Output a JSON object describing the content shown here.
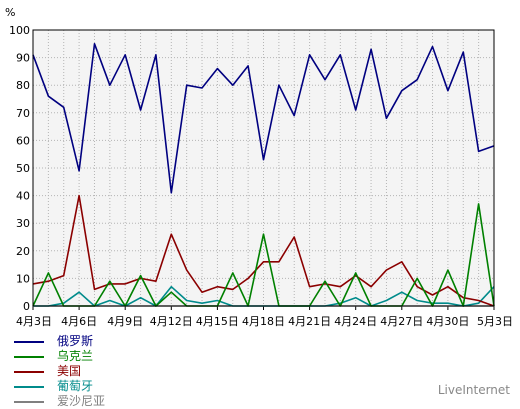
{
  "chart_data": {
    "type": "line",
    "ylabel": "%",
    "ylim": [
      0,
      100
    ],
    "y_ticks": [
      0,
      10,
      20,
      30,
      40,
      50,
      60,
      70,
      80,
      90,
      100
    ],
    "x": [
      "4月3日",
      "4月4日",
      "4月5日",
      "4月6日",
      "4月7日",
      "4月8日",
      "4月9日",
      "4月10日",
      "4月11日",
      "4月12日",
      "4月13日",
      "4月14日",
      "4月15日",
      "4月16日",
      "4月17日",
      "4月18日",
      "4月19日",
      "4月20日",
      "4月21日",
      "4月22日",
      "4月23日",
      "4月24日",
      "4月25日",
      "4月26日",
      "4月27日",
      "4月28日",
      "4月29日",
      "4月30日",
      "5月1日",
      "5月2日",
      "5月3日"
    ],
    "x_tick_labels": [
      {
        "index": 0,
        "label": "4月3日"
      },
      {
        "index": 3,
        "label": "4月6日"
      },
      {
        "index": 6,
        "label": "4月9日"
      },
      {
        "index": 9,
        "label": "4月12日"
      },
      {
        "index": 12,
        "label": "4月15日"
      },
      {
        "index": 15,
        "label": "4月18日"
      },
      {
        "index": 18,
        "label": "4月21日"
      },
      {
        "index": 21,
        "label": "4月24日"
      },
      {
        "index": 24,
        "label": "4月27日"
      },
      {
        "index": 27,
        "label": "4月30日"
      },
      {
        "index": 30,
        "label": "5月3日"
      }
    ],
    "grid": true,
    "legend_position": "bottom-left",
    "series": [
      {
        "name": "俄罗斯",
        "color": "#000080",
        "values": [
          91,
          76,
          72,
          49,
          95,
          80,
          91,
          71,
          91,
          41,
          80,
          79,
          86,
          80,
          87,
          53,
          80,
          69,
          91,
          82,
          91,
          71,
          93,
          68,
          78,
          82,
          94,
          78,
          92,
          56,
          58
        ]
      },
      {
        "name": "乌克兰",
        "color": "#008000",
        "values": [
          0,
          12,
          0,
          0,
          0,
          9,
          0,
          11,
          0,
          5,
          0,
          0,
          0,
          12,
          0,
          26,
          0,
          0,
          0,
          9,
          0,
          12,
          0,
          0,
          0,
          10,
          0,
          13,
          0,
          37,
          0
        ]
      },
      {
        "name": "美国",
        "color": "#8b0000",
        "values": [
          8,
          9,
          11,
          40,
          6,
          8,
          8,
          10,
          9,
          26,
          13,
          5,
          7,
          6,
          10,
          16,
          16,
          25,
          7,
          8,
          7,
          11,
          7,
          13,
          16,
          7,
          4,
          7,
          3,
          2,
          0
        ]
      },
      {
        "name": "葡萄牙",
        "color": "#008b8b",
        "values": [
          0,
          0,
          1,
          5,
          0,
          2,
          0,
          3,
          0,
          7,
          2,
          1,
          2,
          0,
          0,
          0,
          0,
          0,
          0,
          0,
          1,
          3,
          0,
          2,
          5,
          2,
          1,
          1,
          0,
          1,
          7
        ]
      },
      {
        "name": "爱沙尼亚",
        "color": "#808080",
        "values": [
          0,
          0,
          0,
          0,
          0,
          0,
          0,
          0,
          0,
          0,
          0,
          0,
          0,
          0,
          0,
          0,
          0,
          0,
          0,
          0,
          0,
          0,
          0,
          0,
          0,
          0,
          0,
          0,
          0,
          0,
          0
        ]
      }
    ]
  },
  "brand": "LiveInternet"
}
